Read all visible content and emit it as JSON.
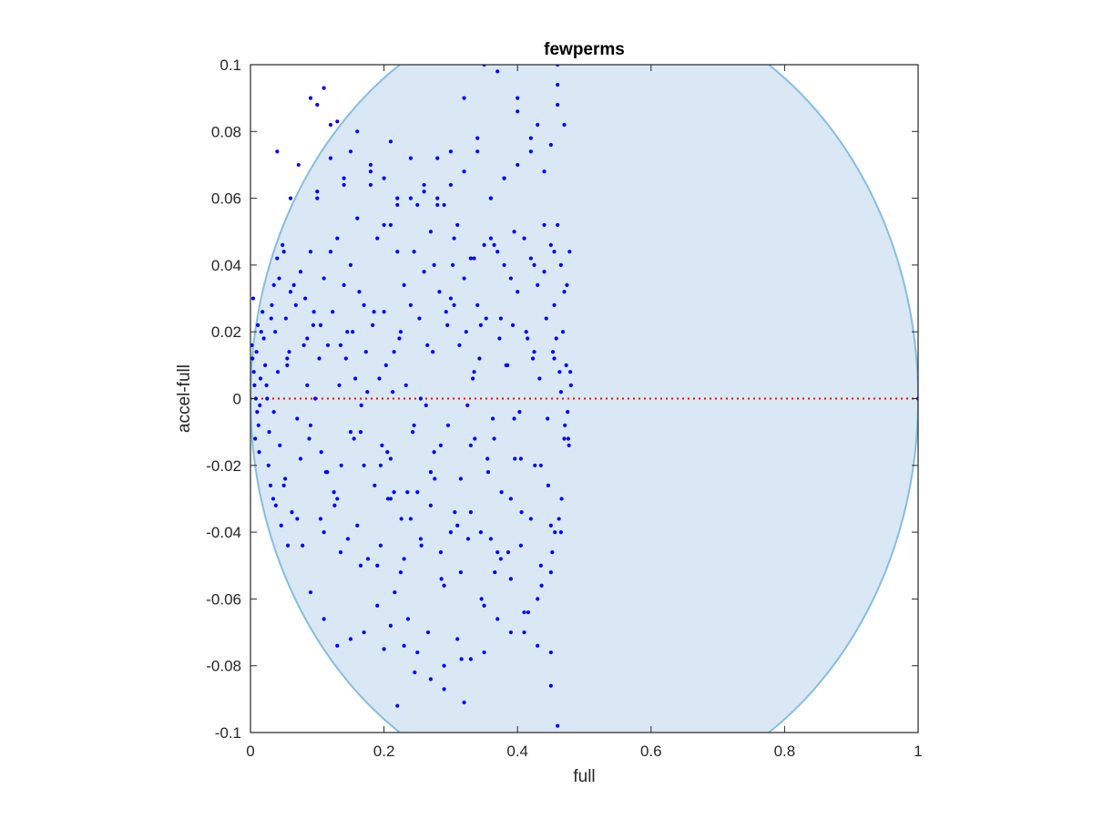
{
  "chart_data": {
    "type": "scatter",
    "title": "fewperms",
    "xlabel": "full",
    "ylabel": "accel-full",
    "xlim": [
      0,
      1
    ],
    "ylim": [
      -0.1,
      0.1
    ],
    "x_ticks": [
      0,
      0.2,
      0.4,
      0.6,
      0.8,
      1
    ],
    "x_tick_labels": [
      "0",
      "0.2",
      "0.4",
      "0.6",
      "0.8",
      "1"
    ],
    "y_ticks": [
      -0.1,
      -0.08,
      -0.06,
      -0.04,
      -0.02,
      0,
      0.02,
      0.04,
      0.06,
      0.08,
      0.1
    ],
    "y_tick_labels": [
      "-0.1",
      "-0.08",
      "-0.06",
      "-0.04",
      "-0.02",
      "0",
      "0.02",
      "0.04",
      "0.06",
      "0.08",
      "0.1"
    ],
    "grid": false,
    "reference_line": {
      "y": 0,
      "style": "dotted",
      "color": "#ff0000"
    },
    "region": {
      "shape": "ellipse",
      "center": [
        0.5,
        0
      ],
      "x_semi_axis": 0.5,
      "y_semi_axis": 0.12,
      "fill": "#d9e8f4",
      "edge": "#86bde0"
    },
    "marker_color": "#0000ff",
    "x": [
      0.002,
      0.003,
      0.005,
      0.006,
      0.008,
      0.01,
      0.012,
      0.014,
      0.016,
      0.018,
      0.004,
      0.007,
      0.009,
      0.011,
      0.013,
      0.02,
      0.022,
      0.024,
      0.027,
      0.03,
      0.032,
      0.035,
      0.038,
      0.04,
      0.043,
      0.046,
      0.05,
      0.053,
      0.056,
      0.06,
      0.025,
      0.028,
      0.031,
      0.034,
      0.037,
      0.041,
      0.044,
      0.048,
      0.052,
      0.055,
      0.058,
      0.062,
      0.065,
      0.068,
      0.07,
      0.072,
      0.075,
      0.078,
      0.082,
      0.085,
      0.088,
      0.09,
      0.094,
      0.097,
      0.1,
      0.103,
      0.106,
      0.11,
      0.113,
      0.116,
      0.12,
      0.123,
      0.126,
      0.13,
      0.133,
      0.136,
      0.14,
      0.143,
      0.146,
      0.15,
      0.153,
      0.157,
      0.16,
      0.163,
      0.166,
      0.17,
      0.173,
      0.176,
      0.18,
      0.183,
      0.186,
      0.19,
      0.193,
      0.197,
      0.2,
      0.203,
      0.206,
      0.21,
      0.213,
      0.216,
      0.22,
      0.223,
      0.226,
      0.23,
      0.233,
      0.236,
      0.24,
      0.243,
      0.246,
      0.25,
      0.253,
      0.256,
      0.26,
      0.263,
      0.266,
      0.27,
      0.273,
      0.276,
      0.28,
      0.283,
      0.286,
      0.29,
      0.293,
      0.296,
      0.3,
      0.303,
      0.306,
      0.31,
      0.313,
      0.316,
      0.32,
      0.323,
      0.326,
      0.33,
      0.333,
      0.336,
      0.34,
      0.343,
      0.346,
      0.35,
      0.353,
      0.356,
      0.36,
      0.363,
      0.366,
      0.37,
      0.373,
      0.376,
      0.38,
      0.383,
      0.386,
      0.39,
      0.393,
      0.396,
      0.4,
      0.403,
      0.406,
      0.41,
      0.413,
      0.416,
      0.42,
      0.423,
      0.426,
      0.43,
      0.433,
      0.436,
      0.44,
      0.443,
      0.446,
      0.45,
      0.453,
      0.456,
      0.46,
      0.463,
      0.466,
      0.47,
      0.473,
      0.476,
      0.478,
      0.48,
      0.452,
      0.455,
      0.458,
      0.462,
      0.465,
      0.468,
      0.471,
      0.474,
      0.477,
      0.479,
      0.04,
      0.06,
      0.08,
      0.1,
      0.12,
      0.14,
      0.16,
      0.18,
      0.2,
      0.22,
      0.24,
      0.26,
      0.28,
      0.3,
      0.32,
      0.34,
      0.36,
      0.38,
      0.4,
      0.42,
      0.44,
      0.46,
      0.05,
      0.07,
      0.09,
      0.11,
      0.13,
      0.15,
      0.17,
      0.19,
      0.21,
      0.23,
      0.25,
      0.27,
      0.29,
      0.31,
      0.33,
      0.35,
      0.37,
      0.39,
      0.41,
      0.43,
      0.45,
      0.47,
      0.015,
      0.035,
      0.055,
      0.075,
      0.095,
      0.115,
      0.135,
      0.155,
      0.175,
      0.195,
      0.215,
      0.235,
      0.255,
      0.275,
      0.295,
      0.315,
      0.335,
      0.355,
      0.375,
      0.395,
      0.415,
      0.435,
      0.455,
      0.475,
      0.085,
      0.105,
      0.125,
      0.145,
      0.165,
      0.185,
      0.205,
      0.225,
      0.245,
      0.265,
      0.285,
      0.305,
      0.325,
      0.345,
      0.365,
      0.385,
      0.405,
      0.425,
      0.445,
      0.465,
      0.09,
      0.11,
      0.13,
      0.15,
      0.17,
      0.19,
      0.21,
      0.23,
      0.25,
      0.27,
      0.29,
      0.31,
      0.33,
      0.35,
      0.37,
      0.39,
      0.41,
      0.43,
      0.45,
      0.1,
      0.12,
      0.14,
      0.16,
      0.18,
      0.2,
      0.22,
      0.24,
      0.26,
      0.28,
      0.3,
      0.32,
      0.34,
      0.36,
      0.38,
      0.4,
      0.42,
      0.44,
      0.46,
      0.105,
      0.135,
      0.165,
      0.195,
      0.225,
      0.255,
      0.285,
      0.315,
      0.345,
      0.375,
      0.405,
      0.435,
      0.465,
      0.21,
      0.24,
      0.27,
      0.3,
      0.33,
      0.36,
      0.39,
      0.42,
      0.45,
      0.215,
      0.245,
      0.275,
      0.305,
      0.335,
      0.365,
      0.395,
      0.425,
      0.455,
      0.33,
      0.35,
      0.37,
      0.4,
      0.43,
      0.45,
      0.46,
      0.47,
      0.09,
      0.11,
      0.13,
      0.15,
      0.2,
      0.21,
      0.22,
      0.29,
      0.32,
      0.45,
      0.46,
      1.0
    ],
    "y": [
      0.016,
      0.012,
      0.008,
      0.004,
      0.0,
      -0.004,
      -0.008,
      -0.002,
      0.02,
      0.026,
      0.03,
      -0.012,
      0.014,
      0.022,
      -0.016,
      0.018,
      0.01,
      0.004,
      -0.02,
      -0.026,
      0.028,
      0.034,
      -0.032,
      0.042,
      0.036,
      -0.038,
      0.044,
      0.024,
      -0.044,
      0.06,
      0.0,
      -0.01,
      0.024,
      -0.03,
      0.02,
      0.008,
      -0.014,
      0.046,
      -0.024,
      0.01,
      0.014,
      -0.034,
      0.034,
      0.028,
      -0.006,
      0.07,
      0.038,
      -0.044,
      0.03,
      0.018,
      -0.012,
      0.044,
      0.022,
      0.0,
      0.06,
      0.012,
      -0.016,
      0.036,
      -0.022,
      0.016,
      0.044,
      0.026,
      -0.032,
      0.048,
      0.004,
      -0.02,
      0.034,
      0.012,
      -0.042,
      0.04,
      0.02,
      0.006,
      -0.038,
      0.032,
      -0.002,
      0.028,
      0.014,
      -0.048,
      0.064,
      0.022,
      -0.026,
      0.048,
      0.006,
      -0.014,
      0.026,
      0.01,
      -0.03,
      0.052,
      0.002,
      -0.058,
      0.044,
      0.018,
      -0.036,
      0.034,
      0.004,
      -0.066,
      0.028,
      -0.01,
      -0.082,
      0.058,
      0.024,
      -0.044,
      0.038,
      -0.002,
      -0.07,
      0.05,
      0.014,
      -0.024,
      0.06,
      0.032,
      -0.054,
      0.058,
      0.026,
      -0.008,
      0.03,
      0.04,
      -0.034,
      0.052,
      0.016,
      -0.078,
      0.036,
      0.02,
      -0.042,
      0.042,
      0.006,
      -0.012,
      0.028,
      0.012,
      -0.06,
      0.046,
      0.024,
      -0.022,
      0.048,
      -0.006,
      -0.052,
      0.044,
      0.018,
      -0.028,
      0.04,
      0.01,
      -0.046,
      0.036,
      0.022,
      -0.018,
      0.032,
      -0.004,
      -0.034,
      0.048,
      0.02,
      -0.064,
      0.042,
      0.012,
      -0.02,
      0.034,
      0.006,
      -0.056,
      0.038,
      0.024,
      -0.026,
      0.046,
      0.014,
      -0.04,
      0.052,
      0.008,
      -0.03,
      0.032,
      0.01,
      -0.012,
      0.044,
      0.004,
      -0.046,
      0.028,
      0.018,
      -0.036,
      0.04,
      0.02,
      -0.008,
      0.034,
      -0.014,
      0.008,
      0.074,
      0.032,
      0.016,
      0.088,
      0.082,
      0.066,
      0.054,
      0.07,
      0.052,
      0.058,
      0.06,
      0.062,
      0.072,
      0.064,
      0.09,
      0.074,
      0.06,
      0.066,
      0.086,
      0.078,
      0.052,
      0.094,
      -0.026,
      -0.036,
      -0.008,
      -0.04,
      -0.03,
      -0.01,
      -0.02,
      -0.05,
      -0.018,
      -0.048,
      -0.028,
      -0.022,
      -0.056,
      -0.038,
      -0.014,
      -0.062,
      -0.046,
      -0.054,
      -0.07,
      -0.06,
      -0.052,
      -0.012,
      0.006,
      -0.004,
      0.012,
      -0.018,
      0.026,
      -0.022,
      0.016,
      -0.012,
      0.002,
      -0.02,
      0.014,
      -0.028,
      0.0,
      -0.016,
      0.022,
      -0.024,
      0.008,
      -0.018,
      0.024,
      -0.006,
      0.018,
      -0.02,
      0.012,
      -0.004,
      0.004,
      0.022,
      -0.028,
      0.02,
      -0.01,
      0.026,
      -0.016,
      0.02,
      -0.008,
      0.016,
      -0.014,
      0.028,
      -0.002,
      0.022,
      -0.012,
      0.01,
      -0.018,
      0.014,
      -0.006,
      0.002,
      -0.058,
      -0.066,
      -0.074,
      -0.072,
      -0.07,
      -0.062,
      -0.068,
      -0.074,
      -0.076,
      -0.084,
      -0.08,
      -0.072,
      -0.078,
      -0.076,
      -0.066,
      -0.07,
      -0.064,
      -0.074,
      -0.076,
      0.062,
      0.072,
      0.064,
      0.08,
      0.068,
      0.066,
      0.06,
      0.072,
      0.064,
      0.058,
      0.074,
      0.068,
      0.078,
      0.06,
      0.066,
      0.07,
      0.074,
      0.068,
      0.088,
      -0.036,
      -0.046,
      -0.05,
      -0.044,
      -0.052,
      -0.042,
      -0.046,
      -0.052,
      -0.04,
      -0.048,
      -0.044,
      -0.05,
      -0.04,
      -0.03,
      -0.036,
      -0.032,
      -0.04,
      -0.034,
      -0.042,
      -0.03,
      -0.036,
      -0.038,
      -0.028,
      0.044,
      0.04,
      0.048,
      0.042,
      0.046,
      0.05,
      0.04,
      0.044,
      0.042,
      0.1,
      0.098,
      0.09,
      0.082,
      0.076,
      0.1,
      0.082,
      0.09,
      0.093,
      0.083,
      0.074,
      -0.075,
      0.077,
      -0.092,
      -0.087,
      -0.091,
      -0.086,
      -0.098,
      0.0
    ]
  }
}
